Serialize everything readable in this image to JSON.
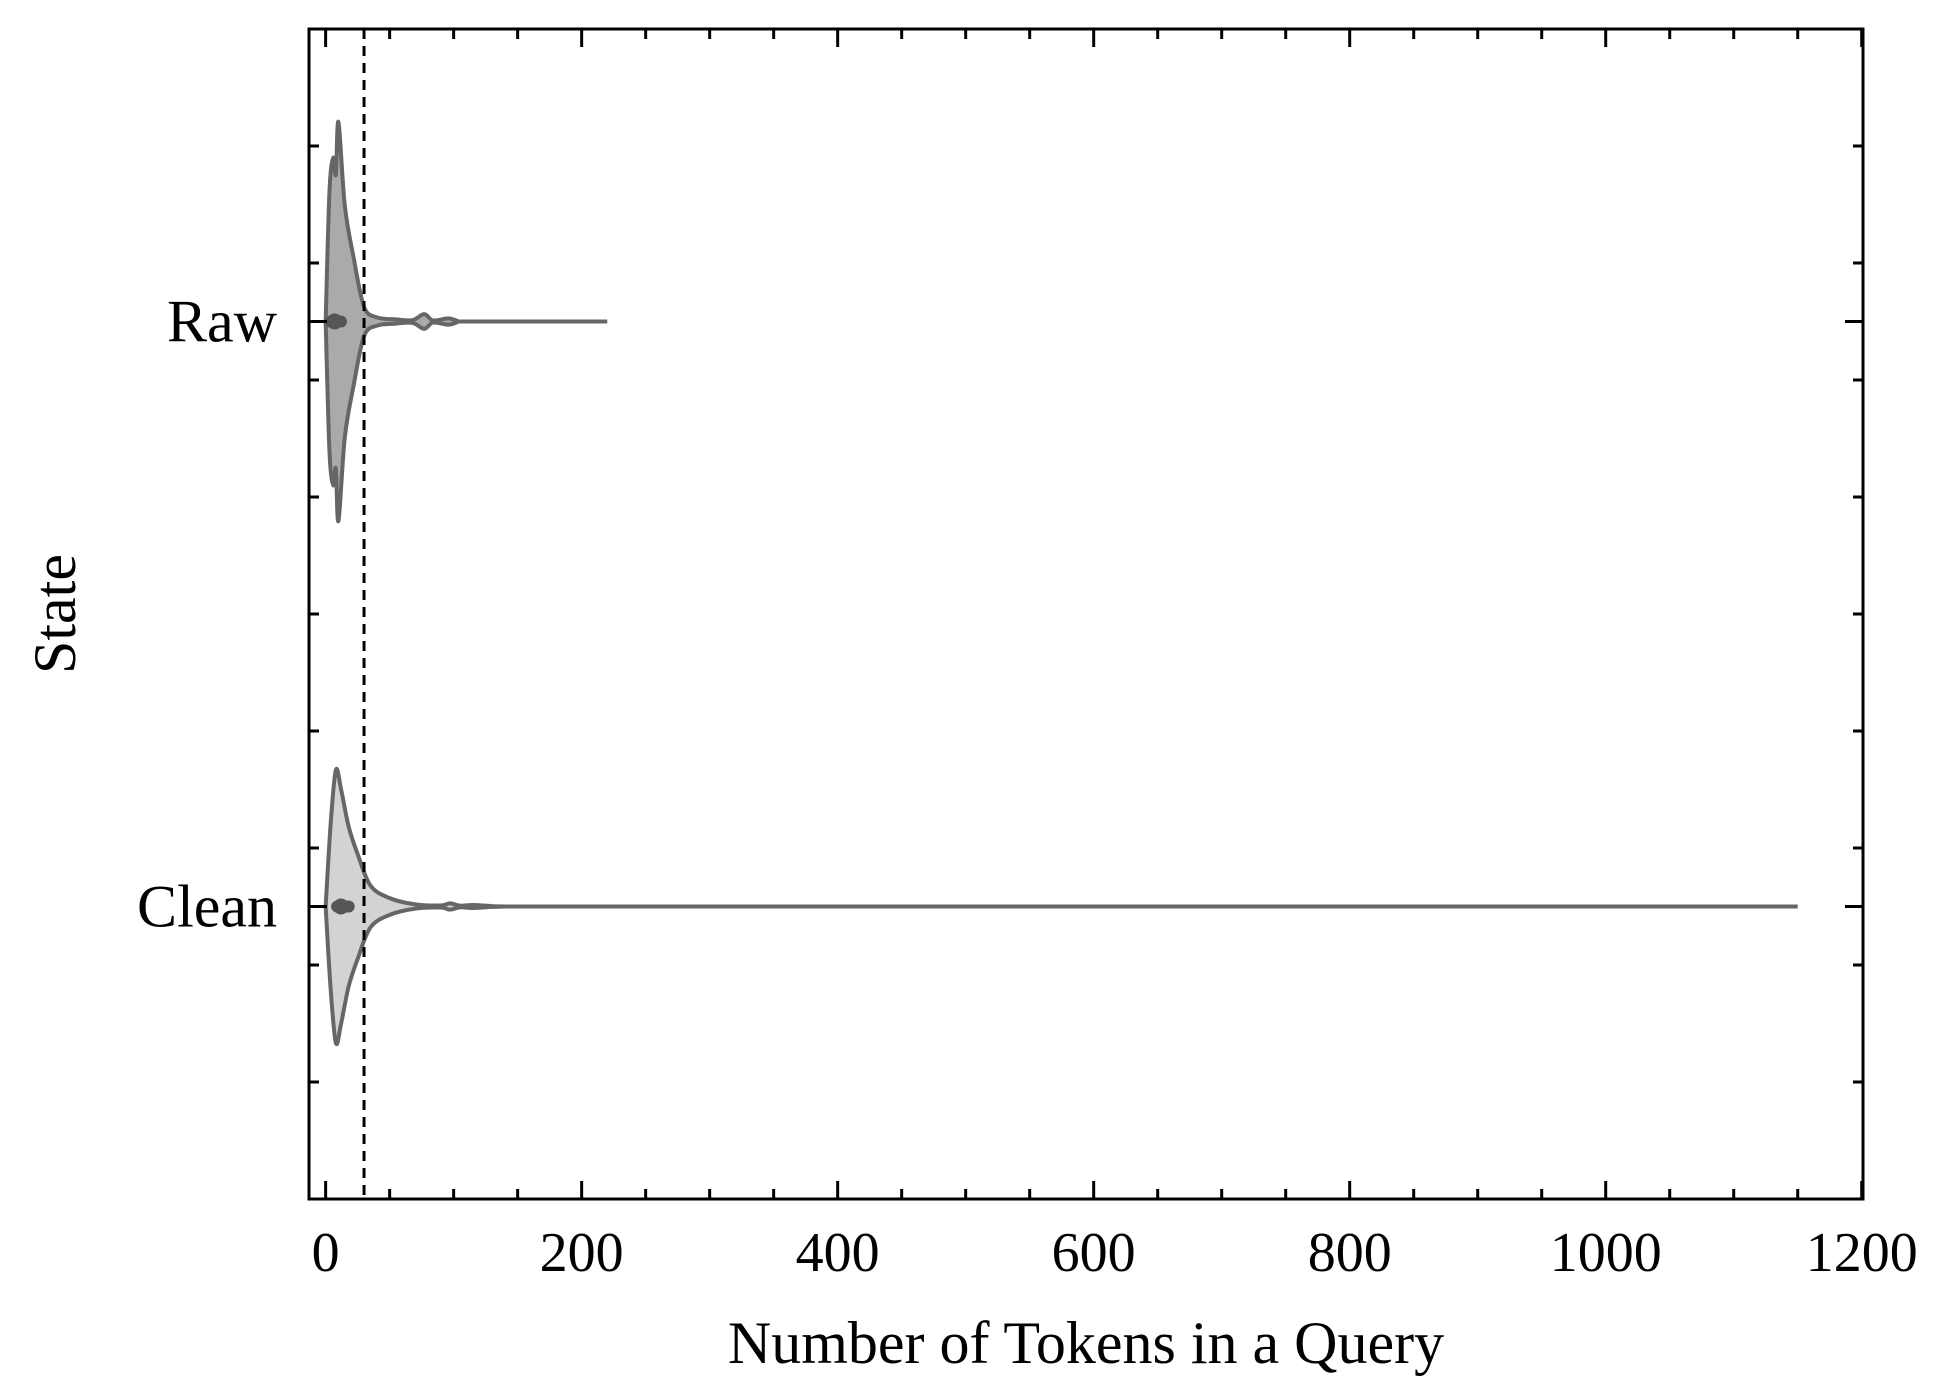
{
  "chart_data": {
    "type": "violin",
    "orientation": "horizontal",
    "xlabel": "Number of Tokens in a Query",
    "ylabel": "State",
    "xlim": [
      -13,
      1201
    ],
    "xticks": [
      0,
      200,
      400,
      600,
      800,
      1000,
      1200
    ],
    "xtick_labels": [
      "0",
      "200",
      "400",
      "600",
      "800",
      "1000",
      "1200"
    ],
    "x_minor_step": 50,
    "y_minor_step": 0.2,
    "reference_line": {
      "x": 30,
      "style": "dashed"
    },
    "grid": false,
    "series": [
      {
        "category": "Raw",
        "fill": "#aaaaaa",
        "min": 0,
        "max": 220,
        "median": 7,
        "q1": 4,
        "q3": 12,
        "profile": [
          [
            0,
            0.0
          ],
          [
            3,
            0.62
          ],
          [
            6,
            0.78
          ],
          [
            8,
            0.7
          ],
          [
            10,
            0.95
          ],
          [
            15,
            0.55
          ],
          [
            22,
            0.3
          ],
          [
            30,
            0.07
          ],
          [
            40,
            0.02
          ],
          [
            55,
            0.01
          ],
          [
            68,
            0.007
          ],
          [
            77,
            0.035
          ],
          [
            84,
            0.005
          ],
          [
            96,
            0.015
          ],
          [
            104,
            0.0
          ]
        ],
        "body_end": 104
      },
      {
        "category": "Clean",
        "fill": "#d3d3d3",
        "min": 0,
        "max": 1150,
        "median": 12,
        "q1": 9,
        "q3": 18,
        "profile": [
          [
            0,
            0.0
          ],
          [
            4,
            0.4
          ],
          [
            8,
            0.65
          ],
          [
            12,
            0.56
          ],
          [
            18,
            0.38
          ],
          [
            25,
            0.25
          ],
          [
            35,
            0.1
          ],
          [
            50,
            0.04
          ],
          [
            70,
            0.01
          ],
          [
            90,
            0.005
          ],
          [
            97,
            0.015
          ],
          [
            105,
            0.004
          ],
          [
            115,
            0.007
          ],
          [
            130,
            0.002
          ],
          [
            140,
            0.0
          ]
        ],
        "body_end": 140
      }
    ]
  }
}
